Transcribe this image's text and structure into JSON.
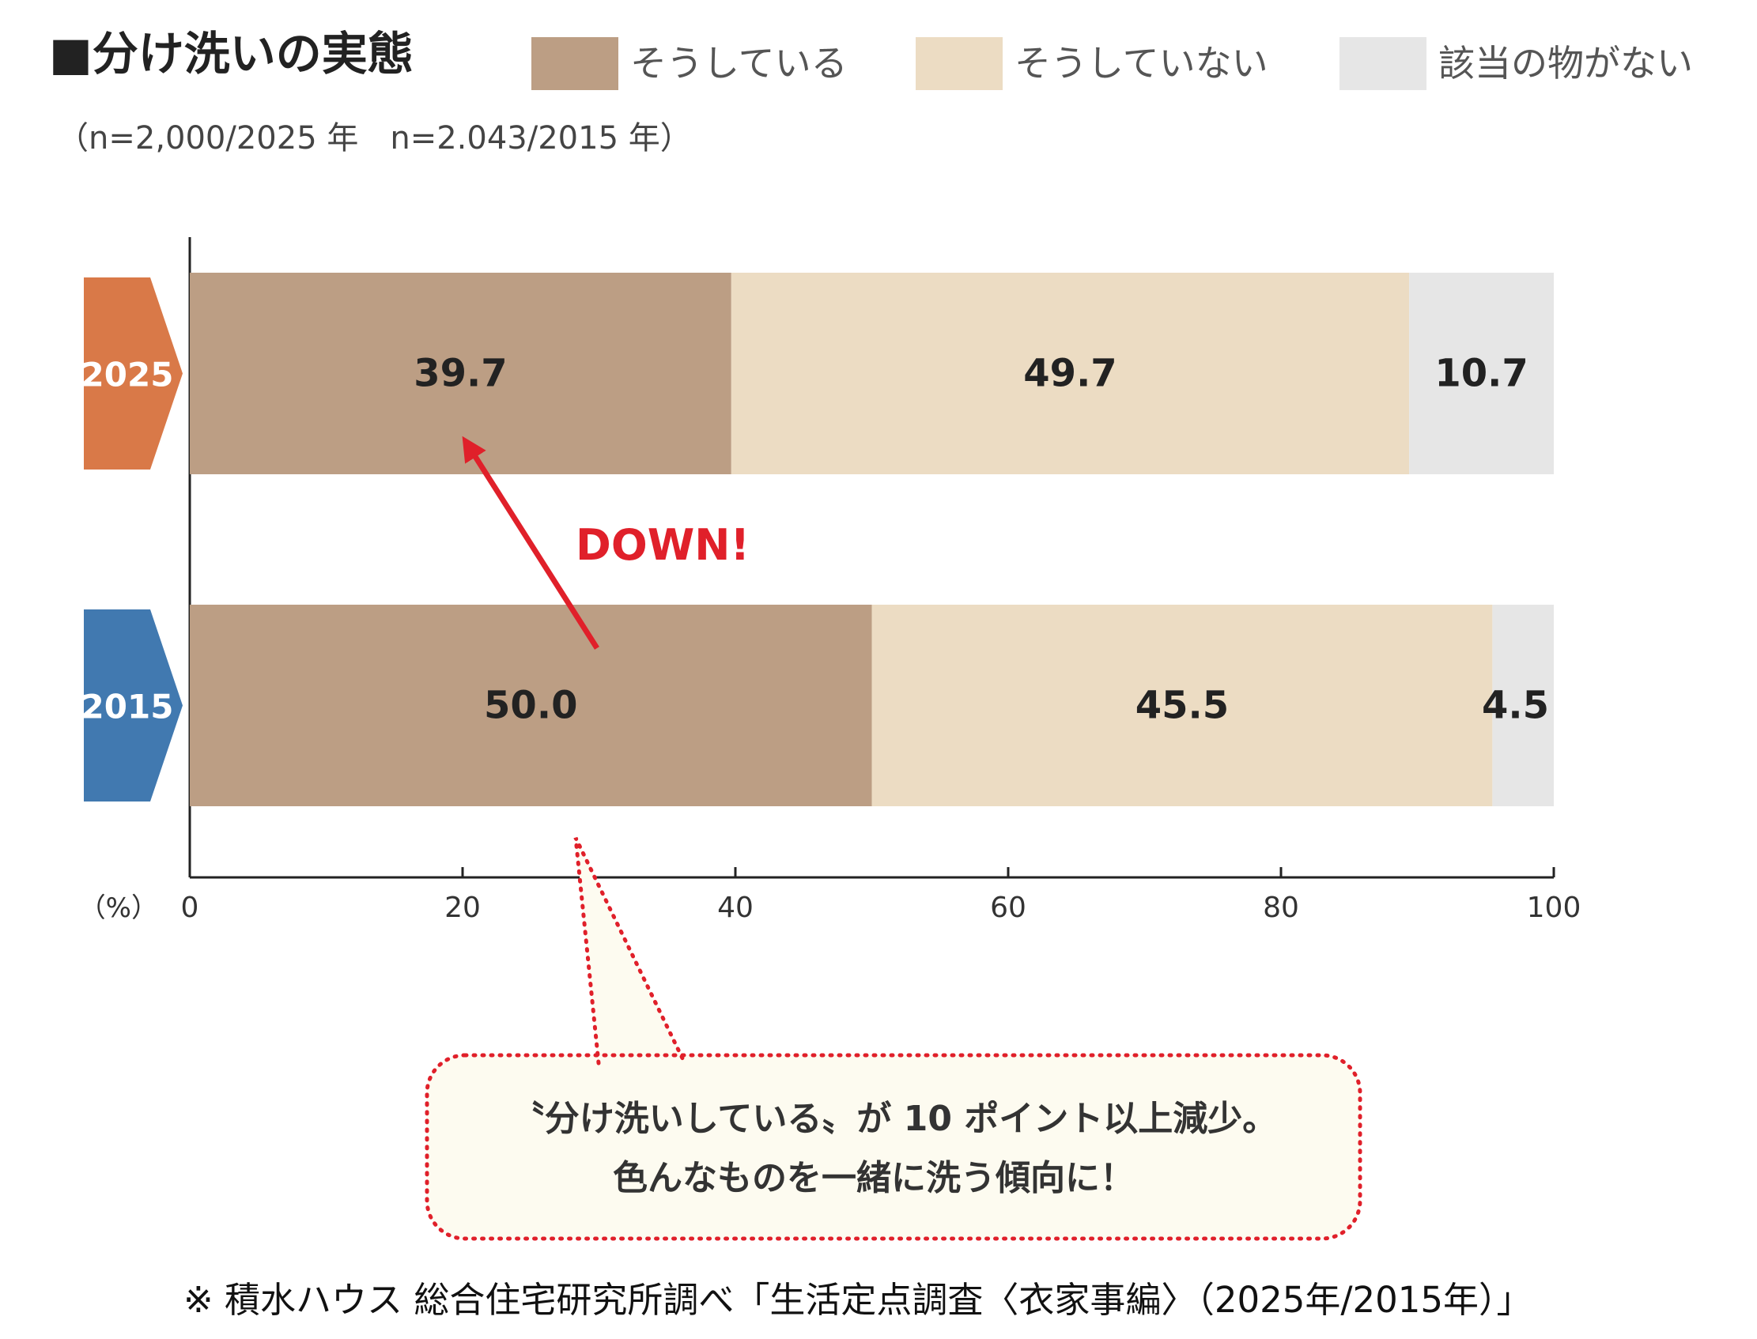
{
  "chart_data": {
    "type": "bar",
    "orientation": "horizontal",
    "stacked": true,
    "title": "■分け洗いの実態",
    "subtitle": "（n=2,000/2025 年　n=2.043/2015 年）",
    "categories": [
      "2025",
      "2015"
    ],
    "series": [
      {
        "name": "そうしている",
        "values": [
          39.7,
          50.0
        ],
        "color": "#bc9e84"
      },
      {
        "name": "そうしていない",
        "values": [
          49.7,
          45.5
        ],
        "color": "#ecdcc3"
      },
      {
        "name": "該当の物がない",
        "values": [
          10.7,
          4.5
        ],
        "color": "#e6e6e6"
      }
    ],
    "category_colors": [
      "#d97948",
      "#4179b0"
    ],
    "xlim": [
      0,
      100
    ],
    "xticks": [
      0,
      20,
      40,
      60,
      80,
      100
    ],
    "xlabel": "（%）",
    "legend_position": "top",
    "grid": false,
    "annotation": {
      "label": "DOWN!",
      "color": "#e0202a",
      "from_category": "2015",
      "to_category": "2025",
      "to_value": 20
    },
    "callout": {
      "line1": "〝分け洗いしている〟が 10 ポイント以上減少。",
      "line2": "色んなものを一緒に洗う傾向に！",
      "border_color": "#e0202a",
      "fill_color": "#fdfbf0"
    },
    "source": "※ 積水ハウス 総合住宅研究所調べ「生活定点調査〈衣家事編〉（2025年/2015年）」"
  }
}
